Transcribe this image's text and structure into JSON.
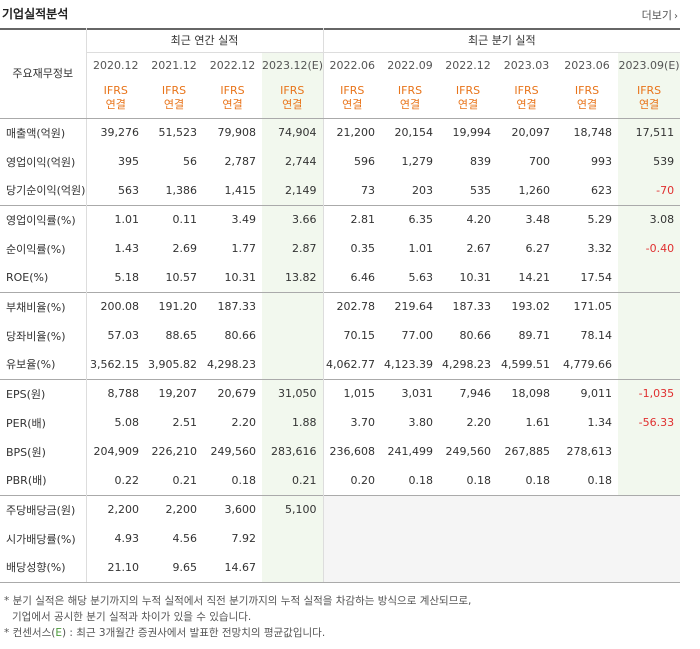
{
  "header": {
    "title": "기업실적분석",
    "more": "더보기"
  },
  "table": {
    "corner": "주요재무정보",
    "group_annual": "최근 연간 실적",
    "group_quarter": "최근 분기 실적",
    "periods": [
      "2020.12",
      "2021.12",
      "2022.12",
      "2023.12(E)",
      "2022.06",
      "2022.09",
      "2022.12",
      "2023.03",
      "2023.06",
      "2023.09(E)"
    ],
    "basis_line1": "IFRS",
    "basis_line2": "연결",
    "rows": [
      {
        "label": "매출액(억원)",
        "values": [
          "39,276",
          "51,523",
          "79,908",
          "74,904",
          "21,200",
          "20,154",
          "19,994",
          "20,097",
          "18,748",
          "17,511"
        ]
      },
      {
        "label": "영업이익(억원)",
        "values": [
          "395",
          "56",
          "2,787",
          "2,744",
          "596",
          "1,279",
          "839",
          "700",
          "993",
          "539"
        ]
      },
      {
        "label": "당기순이익(억원)",
        "values": [
          "563",
          "1,386",
          "1,415",
          "2,149",
          "73",
          "203",
          "535",
          "1,260",
          "623",
          "-70"
        ]
      },
      {
        "label": "영업이익률(%)",
        "values": [
          "1.01",
          "0.11",
          "3.49",
          "3.66",
          "2.81",
          "6.35",
          "4.20",
          "3.48",
          "5.29",
          "3.08"
        ]
      },
      {
        "label": "순이익률(%)",
        "values": [
          "1.43",
          "2.69",
          "1.77",
          "2.87",
          "0.35",
          "1.01",
          "2.67",
          "6.27",
          "3.32",
          "-0.40"
        ]
      },
      {
        "label": "ROE(%)",
        "values": [
          "5.18",
          "10.57",
          "10.31",
          "13.82",
          "6.46",
          "5.63",
          "10.31",
          "14.21",
          "17.54",
          ""
        ]
      },
      {
        "label": "부채비율(%)",
        "values": [
          "200.08",
          "191.20",
          "187.33",
          "",
          "202.78",
          "219.64",
          "187.33",
          "193.02",
          "171.05",
          ""
        ]
      },
      {
        "label": "당좌비율(%)",
        "values": [
          "57.03",
          "88.65",
          "80.66",
          "",
          "70.15",
          "77.00",
          "80.66",
          "89.71",
          "78.14",
          ""
        ]
      },
      {
        "label": "유보율(%)",
        "values": [
          "3,562.15",
          "3,905.82",
          "4,298.23",
          "",
          "4,062.77",
          "4,123.39",
          "4,298.23",
          "4,599.51",
          "4,779.66",
          ""
        ]
      },
      {
        "label": "EPS(원)",
        "values": [
          "8,788",
          "19,207",
          "20,679",
          "31,050",
          "1,015",
          "3,031",
          "7,946",
          "18,098",
          "9,011",
          "-1,035"
        ]
      },
      {
        "label": "PER(배)",
        "values": [
          "5.08",
          "2.51",
          "2.20",
          "1.88",
          "3.70",
          "3.80",
          "2.20",
          "1.61",
          "1.34",
          "-56.33"
        ]
      },
      {
        "label": "BPS(원)",
        "values": [
          "204,909",
          "226,210",
          "249,560",
          "283,616",
          "236,608",
          "241,499",
          "249,560",
          "267,885",
          "278,613",
          ""
        ]
      },
      {
        "label": "PBR(배)",
        "values": [
          "0.22",
          "0.21",
          "0.18",
          "0.21",
          "0.20",
          "0.18",
          "0.18",
          "0.18",
          "0.18",
          ""
        ]
      },
      {
        "label": "주당배당금(원)",
        "values": [
          "2,200",
          "2,200",
          "3,600",
          "5,100",
          "",
          "",
          "",
          "",
          "",
          ""
        ]
      },
      {
        "label": "시가배당률(%)",
        "values": [
          "4.93",
          "4.56",
          "7.92",
          "",
          "",
          "",
          "",
          "",
          "",
          ""
        ]
      },
      {
        "label": "배당성향(%)",
        "values": [
          "21.10",
          "9.65",
          "14.67",
          "",
          "",
          "",
          "",
          "",
          "",
          ""
        ]
      }
    ]
  },
  "notes": {
    "line1": "* 분기 실적은 해당 분기까지의 누적 실적에서 직전 분기까지의 누적 실적을 차감하는 방식으로 계산되므로,",
    "line2": "기업에서 공시한 분기 실적과 차이가 있을 수 있습니다.",
    "line3_prefix": "* 컨센서스(",
    "line3_e": "E",
    "line3_suffix": ") : 최근 3개월간 증권사에서 발표한 전망치의 평균값입니다."
  },
  "colors": {
    "estimate_bg": "#f2f8ee",
    "ifrs": "#e8741a",
    "negative": "#e03030",
    "consensus_e": "#4a9a3a"
  }
}
